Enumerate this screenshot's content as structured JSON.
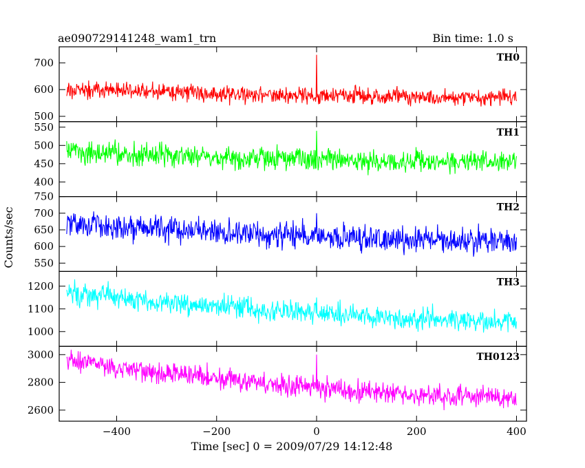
{
  "header": {
    "left_title": "ae090729141248_wam1_trn",
    "right_title": "Bin time: 1.0 s"
  },
  "chart_data": {
    "type": "line",
    "xlabel": "Time [sec] 0 = 2009/07/29 14:12:48",
    "ylabel": "Counts/sec",
    "xlim": [
      -515,
      420
    ],
    "x_ticks": [
      -400,
      -200,
      0,
      200,
      400
    ],
    "x_tick_labels": [
      "−400",
      "−200",
      "0",
      "200",
      "400"
    ],
    "bin_time_s": 1.0,
    "x_range": [
      -500,
      400
    ],
    "panels": [
      {
        "name": "TH0",
        "color": "#ff0000",
        "ylim": [
          480,
          760
        ],
        "ticks": [
          500,
          600,
          700
        ],
        "start": 600,
        "end": 570,
        "noise": 22,
        "spike": 730,
        "tick_labels": [
          "500",
          "600",
          "700"
        ]
      },
      {
        "name": "TH1",
        "color": "#00ff00",
        "ylim": [
          360,
          565
        ],
        "ticks": [
          400,
          450,
          500,
          550
        ],
        "start": 480,
        "end": 455,
        "noise": 22,
        "spike": 540,
        "tick_labels": [
          "400",
          "450",
          "500",
          "550"
        ]
      },
      {
        "name": "TH2",
        "color": "#0000ff",
        "ylim": [
          525,
          750
        ],
        "ticks": [
          550,
          600,
          650,
          700,
          750
        ],
        "start": 670,
        "end": 615,
        "noise": 28,
        "spike": 700,
        "tick_labels": [
          "550",
          "600",
          "650",
          "700",
          "750"
        ]
      },
      {
        "name": "TH3",
        "color": "#00ffff",
        "ylim": [
          935,
          1265
        ],
        "ticks": [
          1000,
          1100,
          1200
        ],
        "start": 1170,
        "end": 1045,
        "noise": 35,
        "spike": 1150,
        "tick_labels": [
          "1000",
          "1100",
          "1200"
        ]
      },
      {
        "name": "TH0123",
        "color": "#ff00ff",
        "ylim": [
          2520,
          3060
        ],
        "ticks": [
          2600,
          2800,
          3000
        ],
        "start": 2960,
        "end": 2690,
        "noise": 55,
        "spike": 3000,
        "tick_labels": [
          "2600",
          "2800",
          "3000"
        ]
      }
    ]
  }
}
